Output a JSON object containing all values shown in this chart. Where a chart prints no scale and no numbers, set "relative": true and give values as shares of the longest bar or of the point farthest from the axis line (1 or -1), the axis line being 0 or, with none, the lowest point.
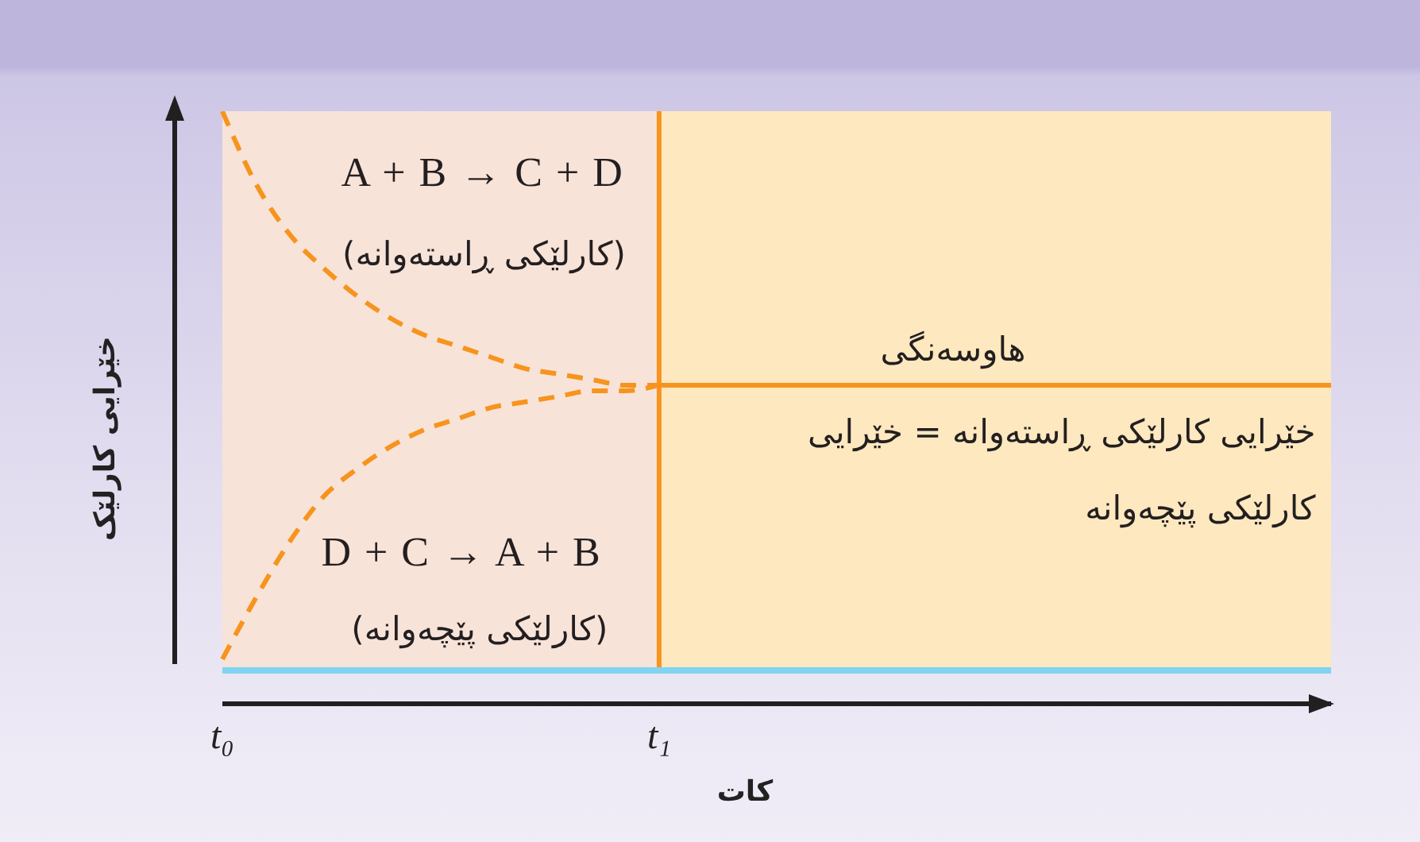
{
  "chart_data": {
    "type": "line",
    "relative": true,
    "xlabel": "کات",
    "ylabel": "خێرایی کارلێک",
    "categories": [
      "t₀",
      null,
      null,
      null,
      null,
      null,
      null,
      null,
      null,
      null,
      null,
      null,
      null,
      "t₁",
      null,
      null,
      null,
      null,
      null,
      null,
      null,
      null,
      null,
      null,
      null,
      null,
      null,
      null,
      null,
      null,
      null,
      null,
      null,
      null
    ],
    "line_style": "dashed",
    "series": [
      {
        "color": "#f7941d",
        "values": [
          1,
          0.87,
          0.78,
          0.72,
          0.67,
          0.63,
          0.6,
          0.58,
          0.56,
          0.54,
          0.53,
          0.52,
          0.51,
          0.51,
          null,
          null,
          null,
          null,
          null,
          null,
          null,
          null,
          null,
          null,
          null,
          null,
          null,
          null,
          null,
          null,
          null,
          null,
          null,
          null
        ]
      },
      {
        "color": "#f7941d",
        "values": [
          0.02,
          0.13,
          0.23,
          0.31,
          0.36,
          0.4,
          0.43,
          0.45,
          0.47,
          0.48,
          0.49,
          0.5,
          0.5,
          0.51,
          null,
          null,
          null,
          null,
          null,
          null,
          null,
          null,
          null,
          null,
          null,
          null,
          null,
          null,
          null,
          null,
          null,
          null,
          null,
          null
        ]
      },
      {
        "color": "#f7941d",
        "line_style": "solid",
        "values": [
          null,
          null,
          null,
          null,
          null,
          null,
          null,
          null,
          null,
          null,
          null,
          null,
          null,
          0.51,
          0.51,
          0.51,
          0.51,
          0.51,
          0.51,
          0.51,
          0.51,
          0.51,
          0.51,
          0.51,
          0.51,
          0.51,
          0.51,
          0.51,
          0.51,
          0.51,
          0.51,
          0.51,
          0.51,
          0.51
        ]
      }
    ],
    "ref_lines": [
      {
        "axis": "x",
        "value": "t₁",
        "color": "#f7941d"
      }
    ],
    "bands": [
      {
        "axis": "x",
        "from": "t₀",
        "to": "t₁",
        "color": "#f8e3d9"
      }
    ],
    "annotations": [
      "A + B → C + D",
      "(کارلێکی ڕاستەوانە)",
      "D + C → A + B",
      "(کارلێکی پێچەوانە)",
      "هاوسەنگی",
      "خێرایی کارلێکی ڕاستەوانە = خێرایی کارلێکی پێچەوانە"
    ]
  }
}
